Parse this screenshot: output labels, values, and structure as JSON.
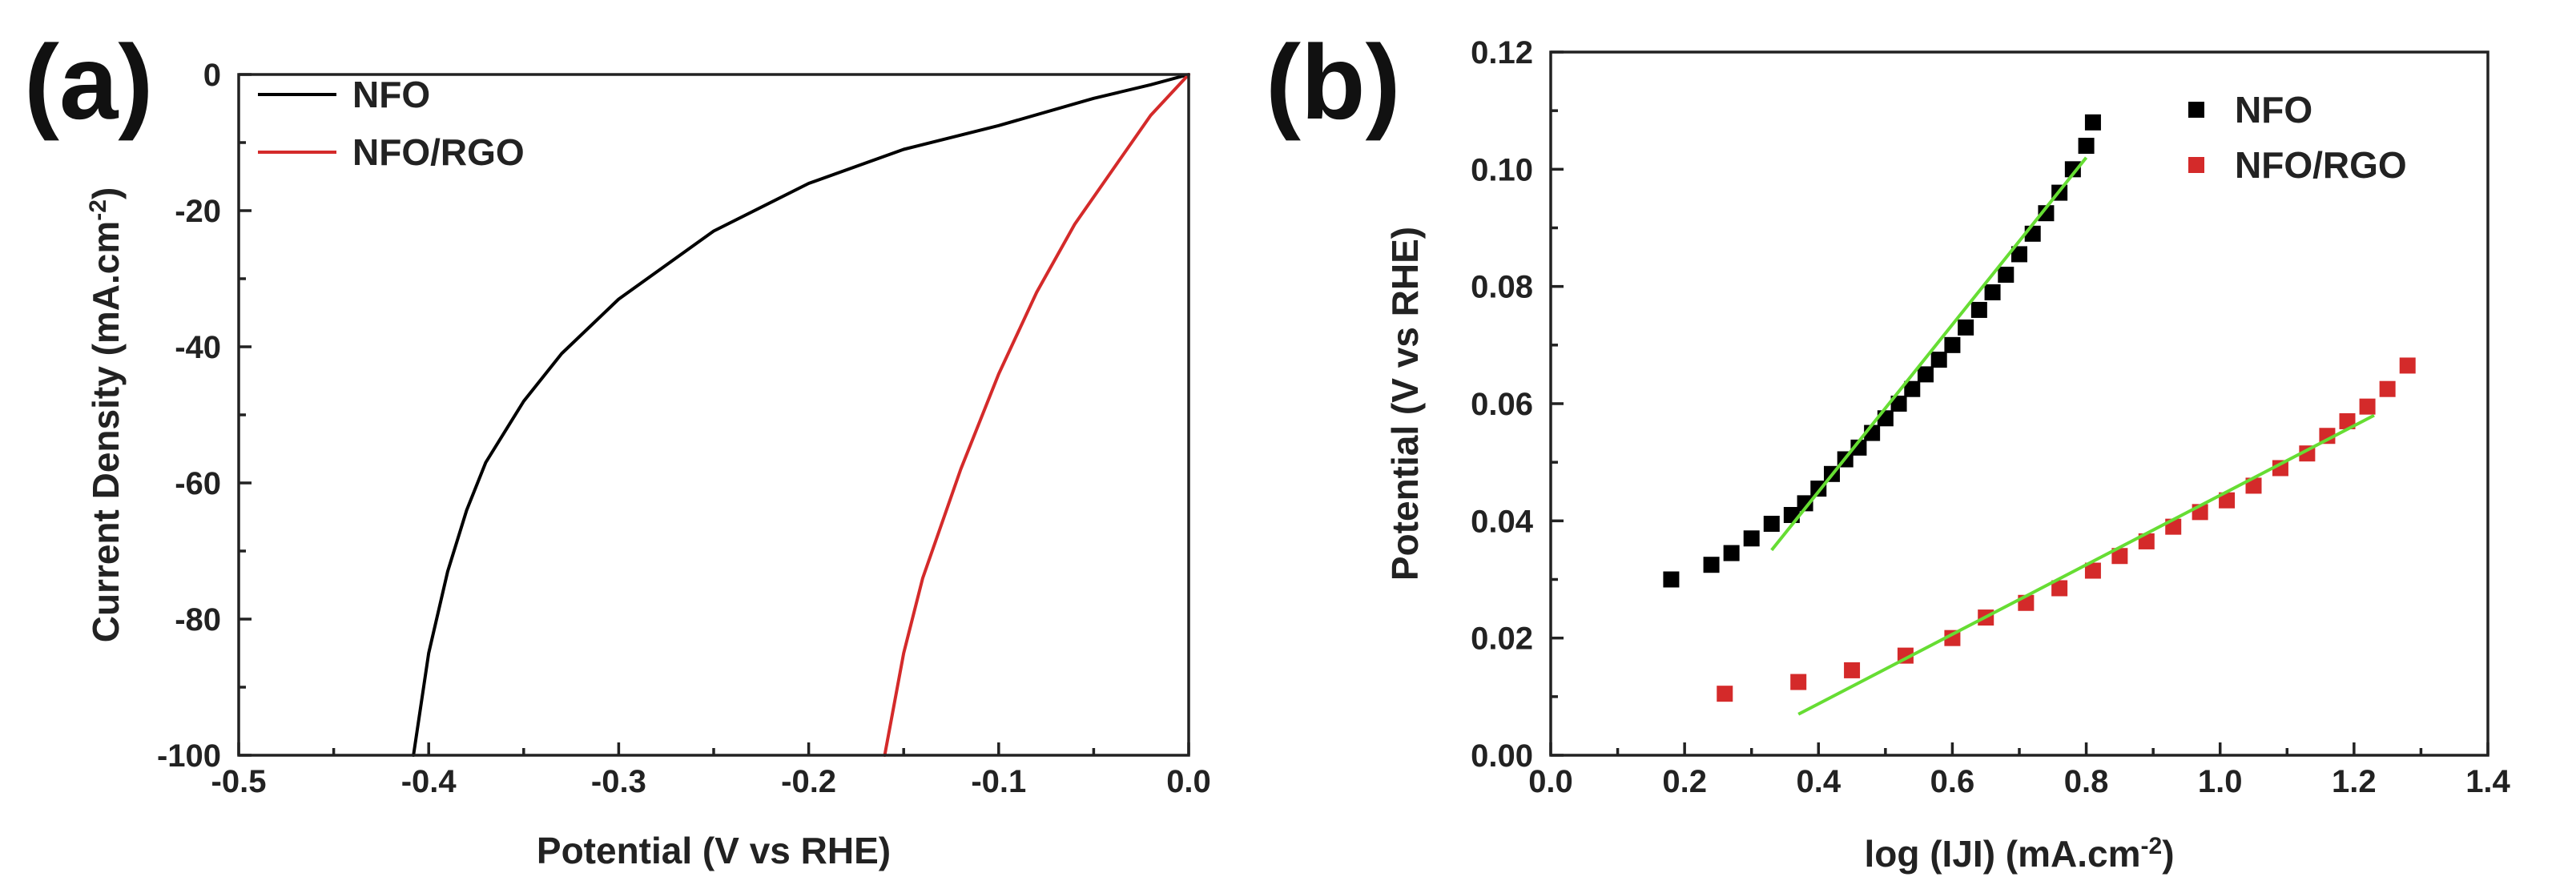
{
  "chart_data": [
    {
      "panel": "(a)",
      "type": "line",
      "xlabel": "Potential (V vs RHE)",
      "ylabel": "Current Density (mA.cm",
      "ylabel_sup": "-2",
      "ylabel_end": ")",
      "xlim": [
        -0.5,
        0.0
      ],
      "ylim": [
        -100,
        0
      ],
      "xticks": [
        -0.5,
        -0.4,
        -0.3,
        -0.2,
        -0.1,
        0.0
      ],
      "xtick_labels": [
        "-0.5",
        "-0.4",
        "-0.3",
        "-0.2",
        "-0.1",
        "0.0"
      ],
      "yticks": [
        0,
        -20,
        -40,
        -60,
        -80,
        -100
      ],
      "ytick_labels": [
        "0",
        "-20",
        "-40",
        "-60",
        "-80",
        "-100"
      ],
      "legend_position": "top-left",
      "series": [
        {
          "name": "NFO",
          "color": "#000000",
          "x": [
            0.0,
            -0.02,
            -0.05,
            -0.1,
            -0.15,
            -0.2,
            -0.25,
            -0.3,
            -0.33,
            -0.35,
            -0.37,
            -0.38,
            -0.39,
            -0.4,
            -0.408
          ],
          "y": [
            0,
            -1.5,
            -3.5,
            -7.5,
            -11,
            -16,
            -23,
            -33,
            -41,
            -48,
            -57,
            -64,
            -73,
            -85,
            -100
          ]
        },
        {
          "name": "NFO/RGO",
          "color": "#d42a2a",
          "x": [
            0.0,
            -0.02,
            -0.04,
            -0.06,
            -0.08,
            -0.1,
            -0.12,
            -0.14,
            -0.15,
            -0.16
          ],
          "y": [
            0,
            -6,
            -14,
            -22,
            -32,
            -44,
            -58,
            -74,
            -85,
            -100
          ]
        }
      ]
    },
    {
      "panel": "(b)",
      "type": "scatter",
      "xlabel": "log (IJI) (mA.cm",
      "xlabel_sup": "-2",
      "xlabel_end": ")",
      "ylabel": "Potential (V vs RHE)",
      "xlim": [
        0.0,
        1.4
      ],
      "ylim": [
        0.0,
        0.12
      ],
      "xticks": [
        0.0,
        0.2,
        0.4,
        0.6,
        0.8,
        1.0,
        1.2,
        1.4
      ],
      "xtick_labels": [
        "0.0",
        "0.2",
        "0.4",
        "0.6",
        "0.8",
        "1.0",
        "1.2",
        "1.4"
      ],
      "yticks": [
        0.0,
        0.02,
        0.04,
        0.06,
        0.08,
        0.1,
        0.12
      ],
      "ytick_labels": [
        "0.00",
        "0.02",
        "0.04",
        "0.06",
        "0.08",
        "0.10",
        "0.12"
      ],
      "legend_position": "top-right",
      "series": [
        {
          "name": "NFO",
          "color": "#000000",
          "x": [
            0.18,
            0.24,
            0.27,
            0.3,
            0.33,
            0.36,
            0.38,
            0.4,
            0.42,
            0.44,
            0.46,
            0.48,
            0.5,
            0.52,
            0.54,
            0.56,
            0.58,
            0.6,
            0.62,
            0.64,
            0.66,
            0.68,
            0.7,
            0.72,
            0.74,
            0.76,
            0.78,
            0.8,
            0.81
          ],
          "y": [
            0.03,
            0.0325,
            0.0345,
            0.037,
            0.0395,
            0.041,
            0.043,
            0.0455,
            0.048,
            0.0505,
            0.0525,
            0.055,
            0.0575,
            0.06,
            0.0625,
            0.065,
            0.0675,
            0.07,
            0.073,
            0.076,
            0.079,
            0.082,
            0.0855,
            0.089,
            0.0925,
            0.096,
            0.1,
            0.104,
            0.108
          ]
        },
        {
          "name": "NFO/RGO",
          "color": "#d42a2a",
          "x": [
            0.26,
            0.37,
            0.45,
            0.53,
            0.6,
            0.65,
            0.71,
            0.76,
            0.81,
            0.85,
            0.89,
            0.93,
            0.97,
            1.01,
            1.05,
            1.09,
            1.13,
            1.16,
            1.19,
            1.22,
            1.25,
            1.28
          ],
          "y": [
            0.0105,
            0.0125,
            0.0145,
            0.017,
            0.02,
            0.0235,
            0.026,
            0.0285,
            0.0315,
            0.034,
            0.0365,
            0.039,
            0.0415,
            0.0435,
            0.046,
            0.049,
            0.0515,
            0.0545,
            0.057,
            0.0595,
            0.0625,
            0.0665
          ]
        }
      ],
      "fits": [
        {
          "name": "NFO fit",
          "color": "#66dd33",
          "x": [
            0.33,
            0.8
          ],
          "y": [
            0.035,
            0.102
          ]
        },
        {
          "name": "NFO/RGO fit",
          "color": "#66dd33",
          "x": [
            0.37,
            1.23
          ],
          "y": [
            0.007,
            0.058
          ]
        }
      ]
    }
  ]
}
